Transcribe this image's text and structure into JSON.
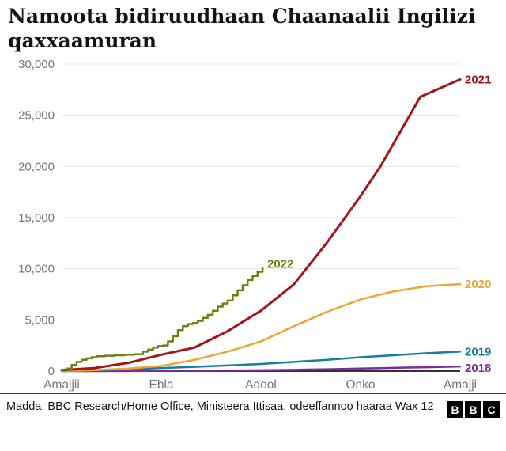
{
  "header": {
    "title": "Namoota bidiruudhaan Chaanaalii Ingilizi qaxxaamuran"
  },
  "footer": {
    "source": "Madda: BBC Research/Home Office, Ministeera Ittisaa, odeeffannoo haaraa Wax 12",
    "logo_letters": [
      "B",
      "B",
      "C"
    ]
  },
  "chart_data": {
    "type": "line",
    "title": "Namoota bidiruudhaan Chaanaalii Ingilizi qaxxaamuran",
    "xlabel": "",
    "ylabel": "",
    "xlim": [
      0,
      12
    ],
    "ylim": [
      0,
      30000
    ],
    "yticks": [
      0,
      5000,
      10000,
      15000,
      20000,
      25000,
      30000
    ],
    "x_tick_positions": [
      0,
      3,
      6,
      9,
      12
    ],
    "x_tick_labels": [
      "Amajjii",
      "Ebla",
      "Adool",
      "Onko",
      "Amajji"
    ],
    "grid_color": "#e6e6e6",
    "axis_color": "#333333",
    "tick_label_color": "#757575",
    "legend_position": "line-end-labels",
    "series": [
      {
        "name": "2018",
        "color": "#7b2aa0",
        "width": 2.5,
        "step": false,
        "label_dy": 2,
        "x": [
          0,
          1,
          2,
          3,
          4,
          5,
          6,
          7,
          8,
          9,
          10,
          11,
          12
        ],
        "values": [
          0,
          0,
          10,
          20,
          40,
          60,
          90,
          130,
          180,
          250,
          320,
          380,
          450
        ]
      },
      {
        "name": "2019",
        "color": "#13809c",
        "width": 2.5,
        "step": false,
        "label_dy": 0,
        "x": [
          0,
          1,
          2,
          3,
          4,
          5,
          6,
          7,
          8,
          9,
          10,
          11,
          12
        ],
        "values": [
          0,
          80,
          180,
          300,
          420,
          550,
          700,
          900,
          1100,
          1350,
          1550,
          1750,
          1900
        ]
      },
      {
        "name": "2020",
        "color": "#eda52f",
        "width": 2.5,
        "step": false,
        "label_dy": 0,
        "x": [
          0,
          1,
          2,
          3,
          4,
          5,
          6,
          7,
          8,
          9,
          10,
          11,
          12
        ],
        "values": [
          0,
          100,
          250,
          500,
          1100,
          1900,
          2900,
          4400,
          5800,
          7000,
          7800,
          8300,
          8500
        ]
      },
      {
        "name": "2021",
        "color": "#a0161a",
        "width": 3,
        "step": false,
        "label_dy": 0,
        "x": [
          0,
          1,
          2,
          3,
          4,
          5,
          6,
          7,
          8,
          9,
          9.6,
          10.8,
          12
        ],
        "values": [
          100,
          300,
          800,
          1600,
          2300,
          3900,
          5900,
          8500,
          12600,
          17100,
          20000,
          26800,
          28500
        ]
      },
      {
        "name": "2022",
        "color": "#6c8013",
        "width": 2.5,
        "step": true,
        "label_dy": -5,
        "x": [
          0,
          0.15,
          0.3,
          0.45,
          0.6,
          0.75,
          0.9,
          1.05,
          1.3,
          1.6,
          1.9,
          2.2,
          2.45,
          2.6,
          2.75,
          2.9,
          3.05,
          3.2,
          3.35,
          3.5,
          3.65,
          3.8,
          3.95,
          4.1,
          4.25,
          4.4,
          4.55,
          4.7,
          4.85,
          5.0,
          5.15,
          5.3,
          5.45,
          5.6,
          5.75,
          5.9,
          6.05
        ],
        "values": [
          50,
          250,
          600,
          900,
          1100,
          1250,
          1350,
          1450,
          1500,
          1550,
          1600,
          1650,
          1900,
          2100,
          2300,
          2450,
          2500,
          2900,
          3400,
          4000,
          4400,
          4600,
          4700,
          4900,
          5200,
          5500,
          5900,
          6300,
          6600,
          6900,
          7400,
          7900,
          8400,
          8900,
          9300,
          9700,
          10100
        ]
      }
    ]
  }
}
